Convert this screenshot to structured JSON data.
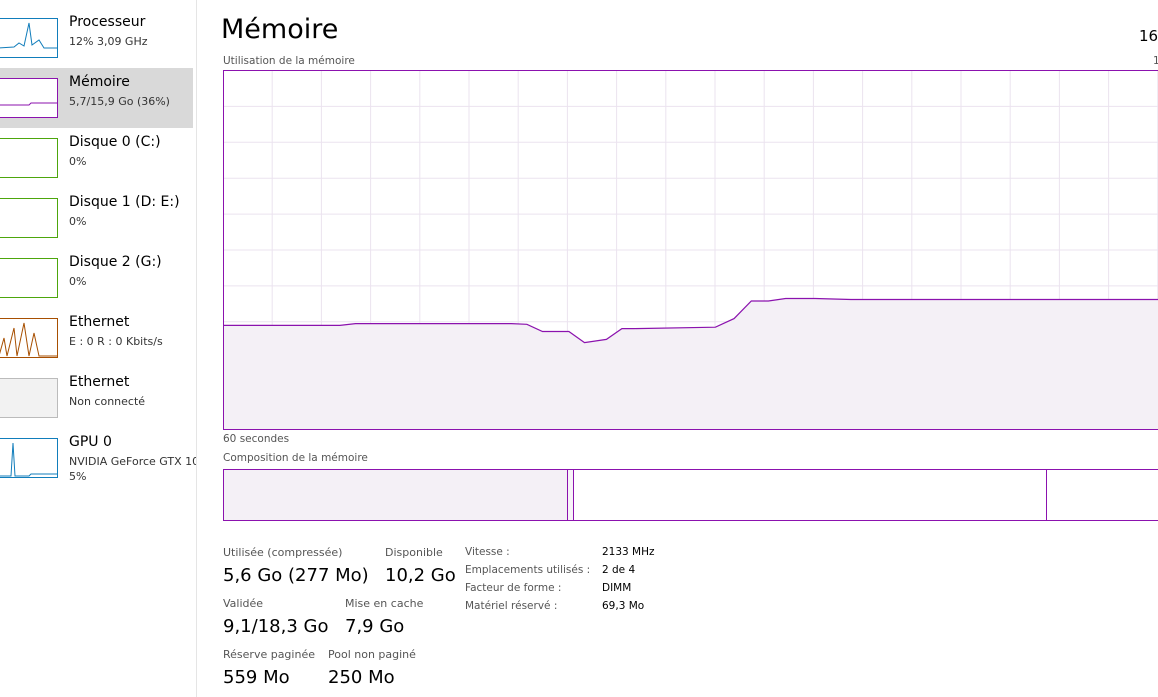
{
  "sidebar": [
    {
      "name": "Processeur",
      "detail": [
        "12% 3,09 GHz"
      ],
      "color": "#117dbb"
    },
    {
      "name": "Mémoire",
      "detail": [
        "5,7/15,9 Go (36%)"
      ],
      "color": "#8b12ae"
    },
    {
      "name": "Disque 0 (C:)",
      "detail": [
        "0%"
      ],
      "color": "#4da60c"
    },
    {
      "name": "Disque 1 (D: E:)",
      "detail": [
        "0%"
      ],
      "color": "#4da60c"
    },
    {
      "name": "Disque 2 (G:)",
      "detail": [
        "0%"
      ],
      "color": "#4da60c"
    },
    {
      "name": "Ethernet",
      "detail": [
        "E : 0 R : 0 Kbits/s"
      ],
      "color": "#a74f01"
    },
    {
      "name": "Ethernet",
      "detail": [
        "Non connecté"
      ],
      "color": "#bbbbbb"
    },
    {
      "name": "GPU 0",
      "detail": [
        "NVIDIA GeForce GTX 10",
        "5%"
      ],
      "color": "#117dbb"
    }
  ],
  "main": {
    "title": "Mémoire",
    "capacity": "16,",
    "usage_label": "Utilisation de la mémoire",
    "usage_max": "1",
    "time_label": "60 secondes",
    "composition_label": "Composition de la mémoire",
    "stats": [
      {
        "label": "Utilisée (compressée)",
        "value": "5,6 Go (277 Mo)"
      },
      {
        "label": "Disponible",
        "value": "10,2 Go"
      },
      {
        "label": "Validée",
        "value": "9,1/18,3 Go"
      },
      {
        "label": "Mise en cache",
        "value": "7,9 Go"
      },
      {
        "label": "Réserve paginée",
        "value": "559 Mo"
      },
      {
        "label": "Pool non paginé",
        "value": "250 Mo"
      }
    ],
    "details": [
      {
        "label": "Vitesse :",
        "value": "2133 MHz"
      },
      {
        "label": "Emplacements utilisés :",
        "value": "2 de 4"
      },
      {
        "label": "Facteur de forme :",
        "value": "DIMM"
      },
      {
        "label": "Matériel réservé :",
        "value": "69,3 Mo"
      }
    ]
  },
  "graph": {
    "type": "line",
    "color": "#8b12ae",
    "xlim": [
      0,
      60
    ],
    "ylim": [
      0,
      100
    ],
    "x": [
      0,
      7.5,
      8.5,
      18.5,
      19.5,
      20.5,
      22.2,
      23.2,
      24.6,
      25.6,
      26.4,
      31.6,
      32.8,
      33.9,
      35,
      36.1,
      38,
      40.3,
      60
    ],
    "values": [
      29,
      29,
      29.5,
      29.5,
      29.3,
      27.3,
      27.3,
      24.2,
      25.1,
      28.1,
      28.1,
      28.5,
      30.9,
      35.8,
      35.8,
      36.5,
      36.5,
      36.2,
      36.2
    ]
  }
}
